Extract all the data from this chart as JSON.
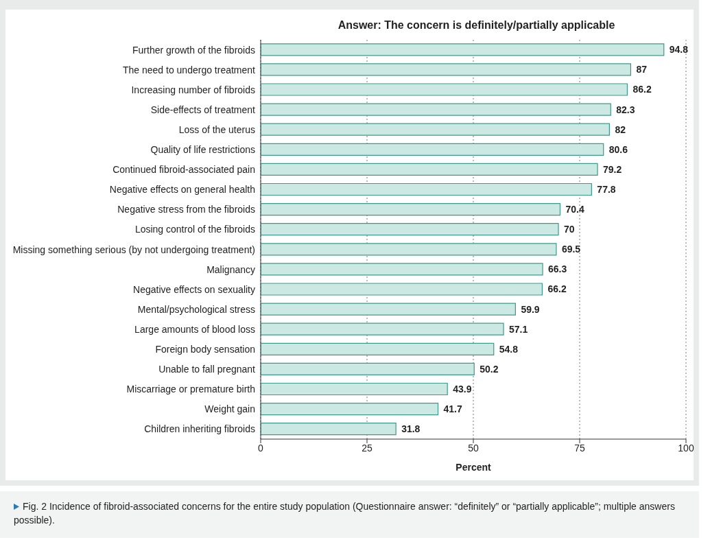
{
  "chart_data": {
    "type": "bar",
    "orientation": "horizontal",
    "title": "Answer: The concern is definitely/partially applicable",
    "xlabel": "Percent",
    "categories": [
      "Further growth of the fibroids",
      "The need to undergo treatment",
      "Increasing number of fibroids",
      "Side-effects of treatment",
      "Loss of the uterus",
      "Quality of life restrictions",
      "Continued fibroid-associated pain",
      "Negative effects on general health",
      "Negative stress from the fibroids",
      "Losing control of the fibroids",
      "Missing something serious (by not undergoing treatment)",
      "Malignancy",
      "Negative effects on sexuality",
      "Mental/psychological stress",
      "Large amounts of blood loss",
      "Foreign body sensation",
      "Unable to fall pregnant",
      "Miscarriage or premature birth",
      "Weight gain",
      "Children inheriting fibroids"
    ],
    "values": [
      94.8,
      87,
      86.2,
      82.3,
      82,
      80.6,
      79.2,
      77.8,
      70.4,
      70,
      69.5,
      66.3,
      66.2,
      59.9,
      57.1,
      54.8,
      50.2,
      43.9,
      41.7,
      31.8
    ],
    "color": "#cce8e3",
    "xlim": [
      0,
      100
    ],
    "xticks": [
      0,
      25,
      50,
      75,
      100
    ],
    "grid": "x",
    "data_labels": true,
    "legend": false,
    "annotations": [
      "Fig. 2 Incidence of fibroid-associated concerns for the entire study population (Questionnaire answer: “definitely” or “partially applicable”; multiple answers possible)."
    ]
  }
}
